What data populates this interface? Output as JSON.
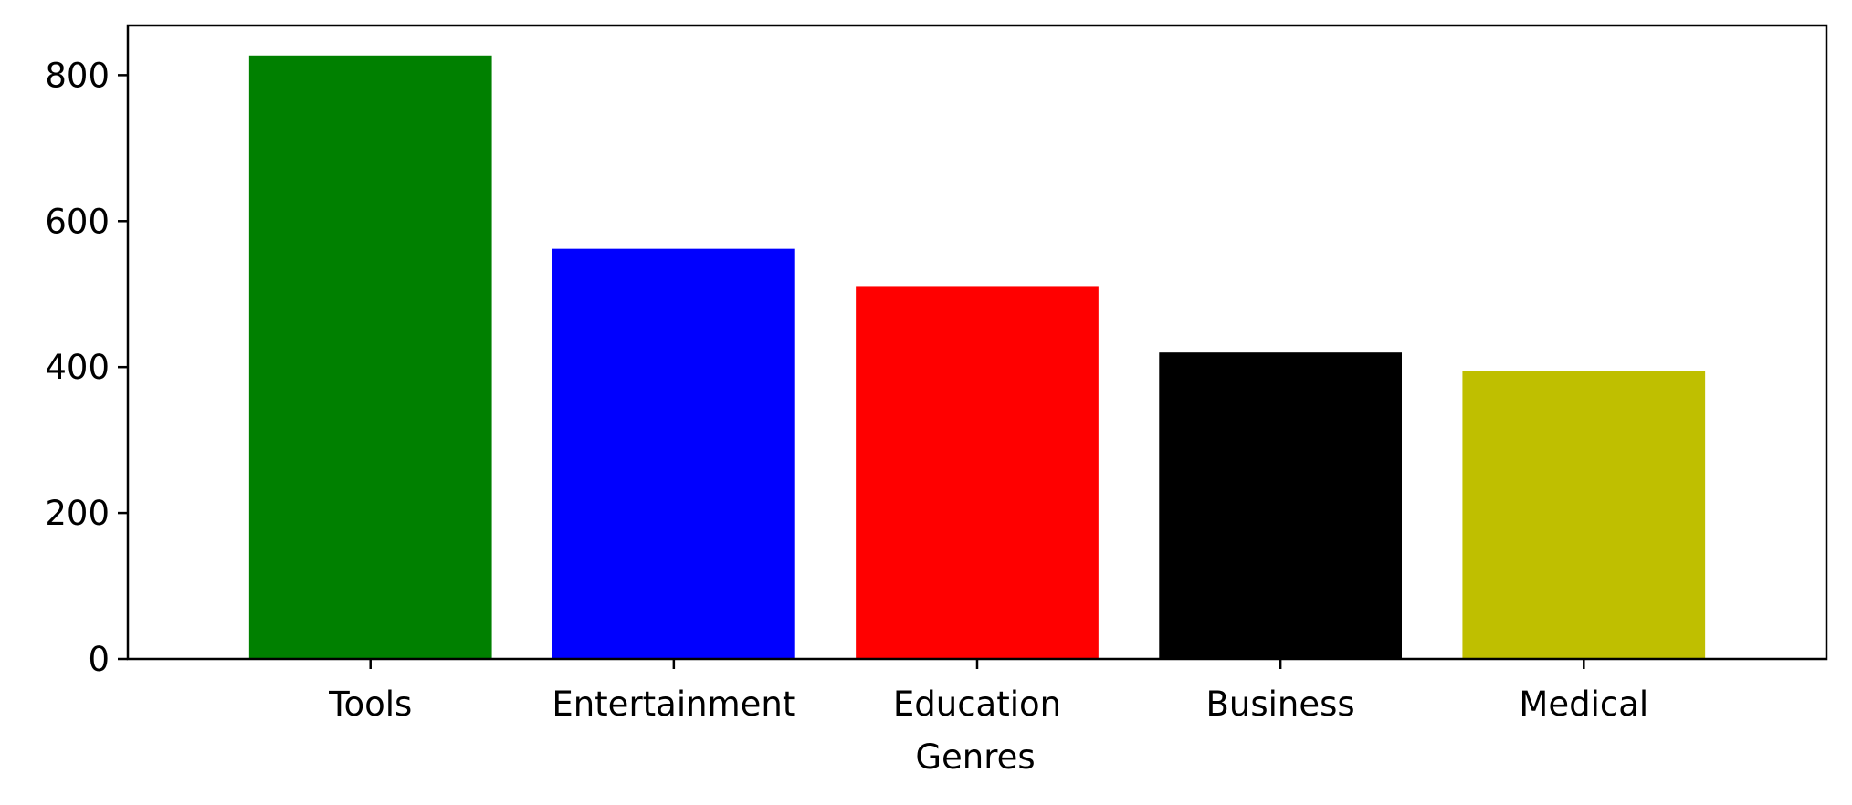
{
  "chart_data": {
    "type": "bar",
    "title": "",
    "xlabel": "Genres",
    "ylabel": "",
    "categories": [
      "Tools",
      "Entertainment",
      "Education",
      "Business",
      "Medical"
    ],
    "values": [
      827,
      562,
      511,
      420,
      395
    ],
    "colors": [
      "#008000",
      "#0000ff",
      "#ff0000",
      "#000000",
      "#bfbf00"
    ],
    "ylim": [
      0,
      868
    ],
    "yticks": [
      0,
      200,
      400,
      600,
      800
    ],
    "grid": false,
    "legend": "none"
  }
}
